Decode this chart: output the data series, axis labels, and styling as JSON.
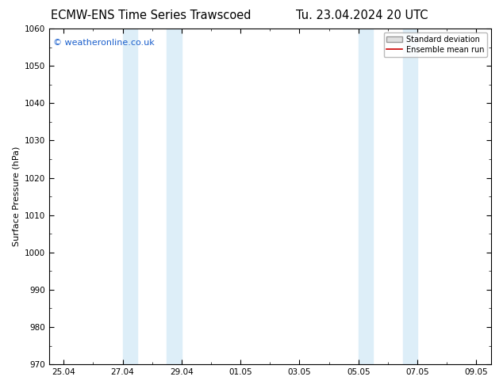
{
  "title_left": "ECMW-ENS Time Series Trawscoed",
  "title_right": "Tu. 23.04.2024 20 UTC",
  "ylabel": "Surface Pressure (hPa)",
  "ylim": [
    970,
    1060
  ],
  "yticks": [
    970,
    980,
    990,
    1000,
    1010,
    1020,
    1030,
    1040,
    1050,
    1060
  ],
  "xtick_labels": [
    "25.04",
    "27.04",
    "29.04",
    "01.05",
    "03.05",
    "05.05",
    "07.05",
    "09.05"
  ],
  "xtick_positions": [
    0,
    2,
    4,
    6,
    8,
    10,
    12,
    14
  ],
  "shaded_bands": [
    {
      "x_start": 2.0,
      "x_end": 2.5
    },
    {
      "x_start": 3.5,
      "x_end": 4.0
    },
    {
      "x_start": 10.0,
      "x_end": 10.5
    },
    {
      "x_start": 11.5,
      "x_end": 12.0
    }
  ],
  "shaded_color": "#ddeef8",
  "watermark_text": "© weatheronline.co.uk",
  "watermark_color": "#1a5fcc",
  "legend_std_label": "Standard deviation",
  "legend_mean_label": "Ensemble mean run",
  "legend_std_facecolor": "#e0e0e0",
  "legend_std_edgecolor": "#999999",
  "legend_mean_color": "#cc0000",
  "bg_color": "#ffffff",
  "spine_color": "#000000",
  "tick_color": "#000000",
  "title_fontsize": 10.5,
  "label_fontsize": 8,
  "tick_fontsize": 7.5,
  "watermark_fontsize": 8
}
